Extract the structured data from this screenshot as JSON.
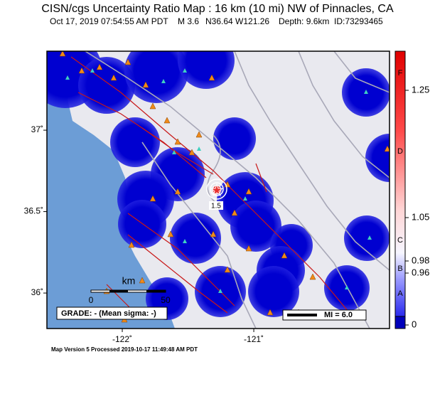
{
  "header": {
    "title": "CISN/cgs Uncertainty Ratio Map : 16 km (10 mi) NW of Pinnacles, CA",
    "subtitle": [
      "Oct 17, 2019 07:54:55 AM PDT",
      "M 3.6",
      "N36.64 W121.26",
      "Depth: 9.6km",
      "ID:73293465"
    ]
  },
  "map": {
    "lonlim": [
      -122.573,
      -119.968
    ],
    "latlim": [
      35.782,
      37.485
    ],
    "lon_ticks": [
      {
        "value": -122,
        "label": "-122˚"
      },
      {
        "value": -121,
        "label": "-121˚"
      }
    ],
    "lat_ticks": [
      {
        "value": 37,
        "label": "37˚"
      },
      {
        "value": 36.5,
        "label": "36.5˚"
      },
      {
        "value": 36,
        "label": "36˚"
      }
    ],
    "contour_label": "1.5",
    "scale": {
      "unit": "km",
      "labels": [
        "0",
        "50"
      ]
    },
    "grade": "GRADE: - (Mean sigma: -)",
    "legend": "MI = 6.0"
  },
  "colorbar": {
    "letters": [
      "F",
      "D",
      "C",
      "B",
      "A"
    ],
    "ticks": [
      "1.25",
      "1.05",
      "0.98",
      "0.96",
      "0"
    ]
  },
  "footer": "Map Version 5 Processed 2019-10-17 11:49:48 AM PDT"
}
